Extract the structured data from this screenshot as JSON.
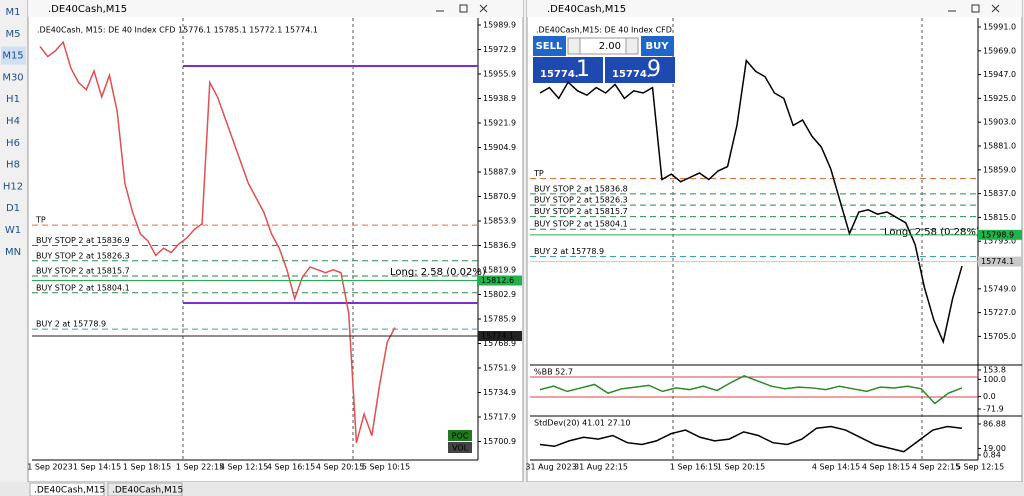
{
  "sidebar": {
    "timeframes": [
      "M1",
      "M5",
      "M15",
      "M30",
      "H1",
      "H4",
      "H6",
      "H8",
      "H12",
      "D1",
      "W1",
      "MN"
    ],
    "active": "M15"
  },
  "left_window": {
    "title": ".DE40Cash,M15",
    "header": ".DE40Cash, M15:  DE 40 Index CFD  15776.1 15785.1 15772.1 15774.1",
    "yticks": [
      15989.9,
      15972.9,
      15955.9,
      15938.9,
      15921.9,
      15904.9,
      15887.9,
      15870.9,
      15853.9,
      15836.9,
      15819.9,
      15802.9,
      15785.9,
      15768.9,
      15751.9,
      15734.9,
      15717.9,
      15700.9
    ],
    "price_labels": [
      {
        "value": 15812.6,
        "label": "15812.6",
        "color": "#22b14c"
      },
      {
        "value": 15774.1,
        "label": "15774.1",
        "color": "#222222"
      }
    ],
    "xlabels": [
      "1 Sep 2023",
      "1 Sep 14:15",
      "1 Sep 18:15",
      "1 Sep 22:15",
      "4 Sep 12:15",
      "4 Sep 16:15",
      "4 Sep 20:15",
      "5 Sep 10:15"
    ],
    "order_lines": [
      {
        "label": "TP",
        "price": 15851
      },
      {
        "label": "BUY STOP 2 at 15836.9",
        "price": 15836.9
      },
      {
        "label": "BUY STOP 2 at 15826.3",
        "price": 15826.3
      },
      {
        "label": "BUY STOP 2 at 15815.7",
        "price": 15815.7
      },
      {
        "label": "BUY STOP 2 at 15804.1",
        "price": 15804.1
      },
      {
        "label": "BUY 2 at 15778.9",
        "price": 15778.9
      }
    ],
    "position_label": "Long: 2.58 (0.02%)",
    "buttons": [
      "POC",
      "VOL"
    ],
    "closes": [
      15975,
      15968,
      15972,
      15978,
      15960,
      15950,
      15945,
      15958,
      15940,
      15955,
      15930,
      15880,
      15860,
      15845,
      15840,
      15830,
      15835,
      15832,
      15838,
      15842,
      15848,
      15852,
      15950,
      15940,
      15925,
      15910,
      15895,
      15880,
      15870,
      15860,
      15845,
      15835,
      15820,
      15800,
      15815,
      15822,
      15820,
      15818,
      15820,
      15818,
      15790,
      15700,
      15720,
      15705,
      15740,
      15770,
      15780
    ]
  },
  "right_window": {
    "title": ".DE40Cash,M15",
    "header": ".DE40Cash,M15:  DE 40 Index CFD",
    "trade_panel": {
      "sell": "SELL",
      "buy": "BUY",
      "volume": "2.00",
      "bid_main": "15774.",
      "bid_big": "1",
      "ask_main": "15774.",
      "ask_big": "9"
    },
    "yticks": [
      {
        "value": 15991,
        "label": "15991.0"
      },
      {
        "value": 15969,
        "label": "15969.0"
      },
      {
        "value": 15947,
        "label": "15947.0"
      },
      {
        "value": 15925,
        "label": "15925.0"
      },
      {
        "value": 15903,
        "label": "15903.0"
      },
      {
        "value": 15881,
        "label": "15881.0"
      },
      {
        "value": 15859,
        "label": "15859.0"
      },
      {
        "value": 15837,
        "label": "15837.0"
      },
      {
        "value": 15815,
        "label": "15815.0"
      },
      {
        "value": 15793,
        "label": "15793.0"
      },
      {
        "value": 15749,
        "label": "15749.0"
      },
      {
        "value": 15727,
        "label": "15727.0"
      },
      {
        "value": 15705,
        "label": "15705.0"
      }
    ],
    "price_labels": [
      {
        "value": 15798.9,
        "label": "15798.9",
        "color": "#22b14c"
      },
      {
        "value": 15774.1,
        "label": "15774.1",
        "color": "#c8c8c8"
      }
    ],
    "xlabels": [
      "31 Aug 2023",
      "31 Aug 22:15",
      "1 Sep 16:15",
      "1 Sep 20:15",
      "4 Sep 14:15",
      "4 Sep 18:15",
      "4 Sep 22:15",
      "5 Sep 12:15"
    ],
    "order_lines": [
      {
        "label": "TP",
        "price": 15851
      },
      {
        "label": "BUY STOP 2 at 15836.8",
        "price": 15836.8
      },
      {
        "label": "BUY STOP 2 at 15826.3",
        "price": 15826.3
      },
      {
        "label": "BUY STOP 2 at 15815.7",
        "price": 15815.7
      },
      {
        "label": "BUY STOP 2 at 15804.1",
        "price": 15804.1
      },
      {
        "label": "BUY 2 at 15778.9",
        "price": 15778.9
      }
    ],
    "position_label": "Long: 2.58 (0.28%)",
    "closes": [
      15930,
      15935,
      15925,
      15940,
      15932,
      15928,
      15935,
      15930,
      15938,
      15925,
      15932,
      15930,
      15935,
      15850,
      15855,
      15848,
      15852,
      15856,
      15850,
      15858,
      15862,
      15900,
      15960,
      15950,
      15945,
      15930,
      15925,
      15900,
      15905,
      15890,
      15880,
      15860,
      15830,
      15800,
      15820,
      15822,
      15818,
      15820,
      15815,
      15810,
      15790,
      15750,
      15720,
      15700,
      15740,
      15770
    ],
    "bb": {
      "label": "%BB 52.7",
      "yticks": [
        153.8,
        {
          "value": 100,
          "label": "100.0"
        },
        {
          "value": 0,
          "label": "0.0"
        },
        -71.9
      ],
      "ylim": [
        -71.9,
        153.8
      ],
      "values": [
        40,
        60,
        30,
        50,
        70,
        20,
        45,
        55,
        65,
        30,
        50,
        40,
        60,
        35,
        80,
        120,
        90,
        60,
        45,
        55,
        50,
        40,
        60,
        45,
        30,
        55,
        50,
        60,
        45,
        -40,
        20,
        50
      ]
    },
    "stddev": {
      "label": "StdDev(20) 41.01 27.10",
      "yticks": [
        86.88,
        {
          "value": 19,
          "label": "19.00"
        },
        0.84
      ],
      "ylim": [
        0.84,
        86.88
      ],
      "values": [
        30,
        25,
        40,
        50,
        45,
        55,
        35,
        30,
        40,
        60,
        70,
        50,
        40,
        45,
        65,
        55,
        35,
        30,
        45,
        75,
        80,
        70,
        50,
        30,
        20,
        10,
        40,
        70,
        80,
        75
      ]
    }
  },
  "tabs": [
    ".DE40Cash,M15",
    ".DE40Cash,M15"
  ]
}
